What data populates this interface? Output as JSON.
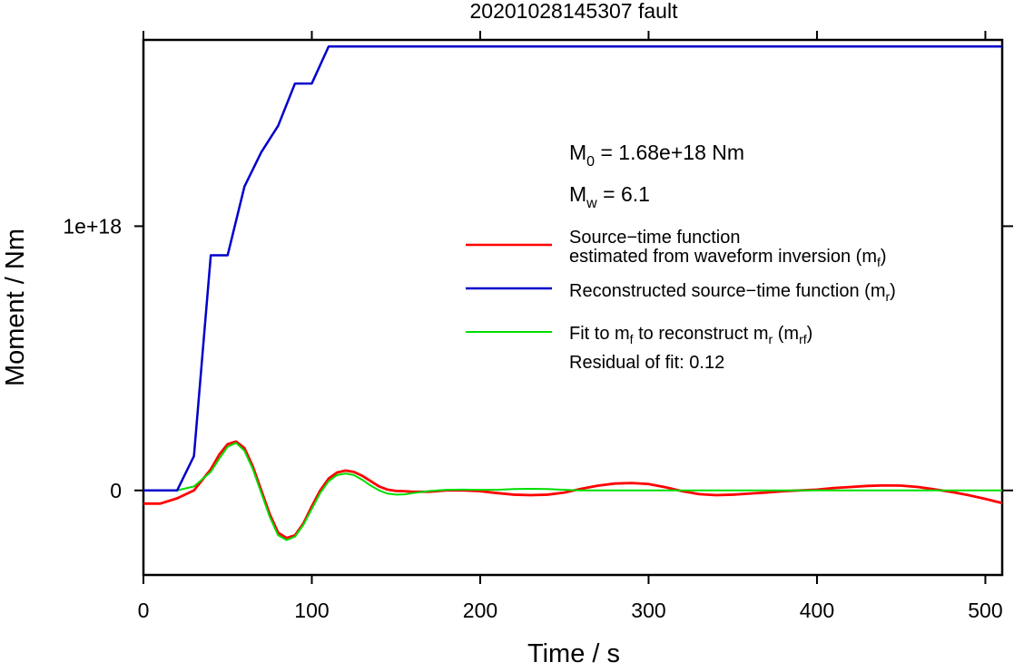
{
  "chart_data": {
    "type": "line",
    "title": "20201028145307 fault",
    "xlabel": "Time / s",
    "ylabel": "Moment / Nm",
    "xlim": [
      0,
      510
    ],
    "ylim": [
      -3.2e+17,
      1.705e+18
    ],
    "x_ticks": [
      0,
      100,
      200,
      300,
      400,
      500
    ],
    "x_tick_labels": [
      "0",
      "100",
      "200",
      "300",
      "400",
      "500"
    ],
    "y_ticks": [
      0,
      1e+18
    ],
    "y_tick_labels": [
      "0",
      "1e+18"
    ],
    "grid": false,
    "legend_position": "right",
    "annotations": {
      "m0_prefix": "M",
      "m0_sub": "0",
      "m0_rest": " = 1.68e+18 Nm",
      "mw_prefix": "M",
      "mw_sub": "w",
      "mw_rest": " = 6.1",
      "residual": "Residual of fit: 0.12"
    },
    "legend": [
      {
        "color": "#ff0000",
        "line1": "Source−time function",
        "line2_pre": "estimated from waveform inversion (m",
        "line2_sub": "f",
        "line2_post": ")"
      },
      {
        "color": "#0000cc",
        "line1_pre": "Reconstructed source−time function (m",
        "line1_sub": "r",
        "line1_post": ")"
      },
      {
        "color": "#00dd00",
        "p1": "Fit to m",
        "s1": "f",
        "p2": " to reconstruct m",
        "s2": "r",
        "p3": " (m",
        "s3": "rf",
        "p4": ")"
      }
    ],
    "series": [
      {
        "name": "Source−time function estimated from waveform inversion (mf)",
        "color": "#ff0000",
        "x": [
          0,
          10,
          20,
          30,
          40,
          45,
          50,
          55,
          60,
          65,
          70,
          75,
          80,
          85,
          90,
          95,
          100,
          105,
          110,
          115,
          120,
          125,
          130,
          135,
          140,
          145,
          150,
          155,
          160,
          170,
          180,
          190,
          200,
          210,
          220,
          230,
          240,
          250,
          260,
          270,
          280,
          290,
          300,
          310,
          320,
          330,
          340,
          350,
          360,
          370,
          380,
          390,
          400,
          410,
          420,
          430,
          440,
          450,
          460,
          470,
          480,
          490,
          500,
          510
        ],
        "y": [
          -5e+16,
          -5e+16,
          -3e+16,
          0,
          8e+16,
          1.35e+17,
          1.75e+17,
          1.85e+17,
          1.6e+17,
          9e+16,
          0,
          -9e+16,
          -1.6e+17,
          -1.8e+17,
          -1.7e+17,
          -1.25e+17,
          -6e+16,
          0,
          4.5e+16,
          6.8e+16,
          7.5e+16,
          7e+16,
          5.5e+16,
          3.5e+16,
          1.5e+16,
          3000000000000000.0,
          -2000000000000000.0,
          -3000000000000000.0,
          -5000000000000000.0,
          -5000000000000000.0,
          0,
          0,
          -3000000000000000.0,
          -1e+16,
          -1.6e+16,
          -1.8e+16,
          -1.6e+16,
          -8000000000000000.0,
          6000000000000000.0,
          1.8e+16,
          2.6e+16,
          2.8e+16,
          2.4e+16,
          1.2e+16,
          -3000000000000000.0,
          -1.4e+16,
          -1.8e+16,
          -1.6e+16,
          -1.2e+16,
          -8000000000000000.0,
          -3000000000000000.0,
          0,
          3000000000000000.0,
          9000000000000000.0,
          1.3e+16,
          1.7e+16,
          1.9e+16,
          1.8e+16,
          1.3e+16,
          4000000000000000.0,
          -6000000000000000.0,
          -1.8e+16,
          -3.2e+16,
          -4.8e+16
        ]
      },
      {
        "name": "Reconstructed source−time function (mr)",
        "color": "#0000cc",
        "x": [
          0,
          20,
          30,
          40,
          50,
          60,
          70,
          80,
          90,
          100,
          110,
          510
        ],
        "y": [
          0,
          0,
          1.3e+17,
          8.9e+17,
          8.9e+17,
          1.15e+18,
          1.28e+18,
          1.38e+18,
          1.54e+18,
          1.54e+18,
          1.68e+18,
          1.68e+18
        ]
      },
      {
        "name": "Fit to mf to reconstruct mr (mrf)",
        "color": "#00dd00",
        "x": [
          0,
          20,
          30,
          40,
          45,
          50,
          55,
          60,
          65,
          70,
          75,
          80,
          85,
          90,
          95,
          100,
          105,
          110,
          115,
          120,
          125,
          130,
          135,
          140,
          145,
          150,
          155,
          160,
          170,
          180,
          190,
          200,
          210,
          220,
          230,
          240,
          250,
          260,
          270,
          280,
          300,
          320,
          340,
          360,
          380,
          400,
          420,
          440,
          460,
          480,
          500,
          510
        ],
        "y": [
          0,
          0,
          1.5e+16,
          7e+16,
          1.2e+17,
          1.65e+17,
          1.8e+17,
          1.5e+17,
          8e+16,
          -1e+16,
          -1e+17,
          -1.7e+17,
          -1.88e+17,
          -1.75e+17,
          -1.3e+17,
          -7e+16,
          -1e+16,
          3.5e+16,
          5.8e+16,
          6.4e+16,
          5.8e+16,
          4e+16,
          1.8e+16,
          0,
          -1.2e+16,
          -1.6e+16,
          -1.5e+16,
          -1e+16,
          -2000000000000000.0,
          2000000000000000.0,
          3000000000000000.0,
          2000000000000000.0,
          2000000000000000.0,
          5000000000000000.0,
          6000000000000000.0,
          5000000000000000.0,
          2000000000000000.0,
          0,
          0,
          0,
          0,
          0,
          0,
          0,
          0,
          0,
          0,
          0,
          0,
          0,
          0,
          0
        ]
      }
    ]
  }
}
